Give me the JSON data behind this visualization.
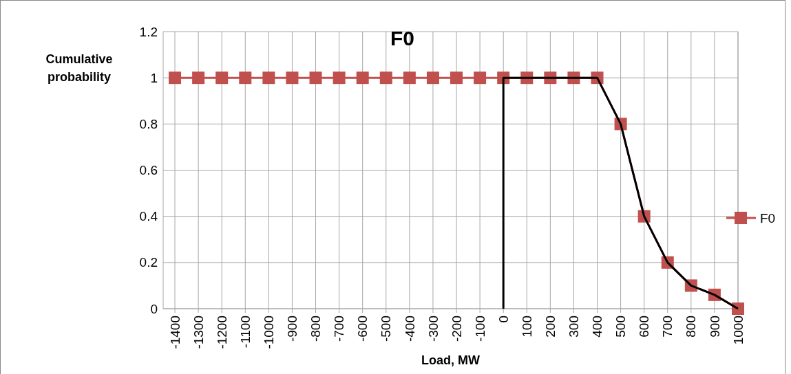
{
  "chart_data": {
    "type": "line",
    "title": "F0",
    "xlabel": "Load, MW",
    "ylabel": "Cumulative probability",
    "x": [
      -1400,
      -1300,
      -1200,
      -1100,
      -1000,
      -900,
      -800,
      -700,
      -600,
      -500,
      -400,
      -300,
      -200,
      -100,
      0,
      100,
      200,
      300,
      400,
      500,
      600,
      700,
      800,
      900,
      1000
    ],
    "series": [
      {
        "name": "F0",
        "color": "#c0504d",
        "marker": "square",
        "values": [
          1,
          1,
          1,
          1,
          1,
          1,
          1,
          1,
          1,
          1,
          1,
          1,
          1,
          1,
          1,
          1,
          1,
          1,
          1,
          0.8,
          0.4,
          0.2,
          0.1,
          0.06,
          0
        ]
      },
      {
        "color": "#000000",
        "marker": "none",
        "x": [
          0,
          0,
          400,
          500,
          600,
          700,
          800,
          900,
          1000
        ],
        "values": [
          0,
          1,
          1,
          0.8,
          0.4,
          0.2,
          0.1,
          0.06,
          0
        ]
      }
    ],
    "xlim": [
      -1450,
      1000
    ],
    "xticks": [
      -1400,
      -1300,
      -1200,
      -1100,
      -1000,
      -900,
      -800,
      -700,
      -600,
      -500,
      -400,
      -300,
      -200,
      -100,
      0,
      100,
      200,
      300,
      400,
      500,
      600,
      700,
      800,
      900,
      1000
    ],
    "ylim": [
      0,
      1.2
    ],
    "yticks": [
      0,
      0.2,
      0.4,
      0.6,
      0.8,
      1,
      1.2
    ],
    "grid": true,
    "legend": "right"
  }
}
